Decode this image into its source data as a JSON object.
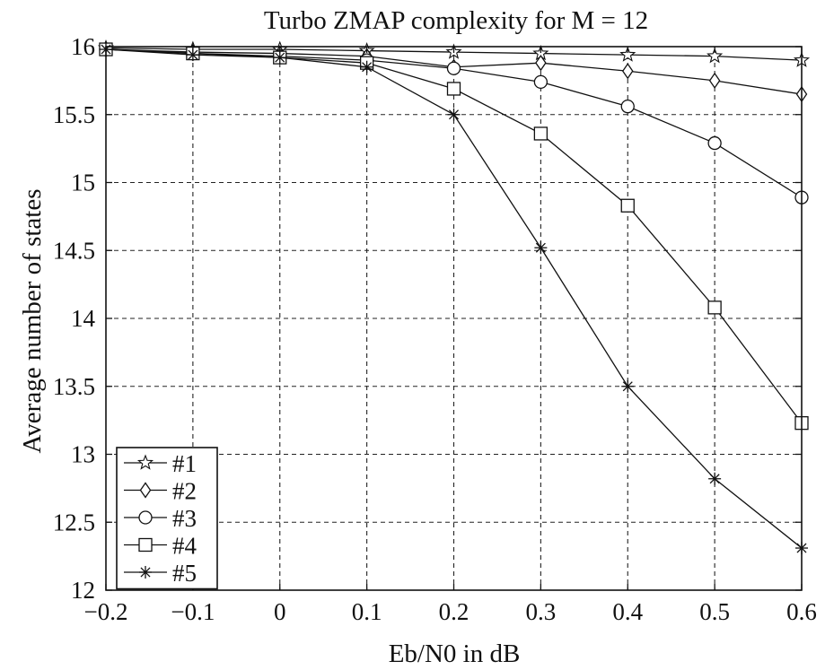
{
  "chart_data": {
    "type": "line",
    "title": "Turbo ZMAP complexity for M = 12",
    "xlabel": "Eb/N0 in dB",
    "ylabel": "Average number of states",
    "x": [
      -0.2,
      -0.1,
      0,
      0.1,
      0.2,
      0.3,
      0.4,
      0.5,
      0.6
    ],
    "xlim": [
      -0.2,
      0.6
    ],
    "ylim": [
      12,
      16
    ],
    "xticks": [
      "−0.2",
      "−0.1",
      "0",
      "0.1",
      "0.2",
      "0.3",
      "0.4",
      "0.5",
      "0.6"
    ],
    "yticks": [
      "12",
      "12.5",
      "13",
      "13.5",
      "14",
      "14.5",
      "15",
      "15.5",
      "16"
    ],
    "grid": true,
    "legend_position": "bottom-left",
    "series": [
      {
        "name": "#1",
        "marker": "star",
        "values": [
          15.99,
          15.98,
          15.98,
          15.97,
          15.96,
          15.95,
          15.94,
          15.93,
          15.9
        ]
      },
      {
        "name": "#2",
        "marker": "diamond",
        "values": [
          15.98,
          15.96,
          15.95,
          15.93,
          15.85,
          15.88,
          15.82,
          15.75,
          15.65
        ]
      },
      {
        "name": "#3",
        "marker": "circle",
        "values": [
          15.98,
          15.95,
          15.93,
          15.9,
          15.84,
          15.74,
          15.56,
          15.29,
          14.89
        ]
      },
      {
        "name": "#4",
        "marker": "square",
        "values": [
          15.98,
          15.95,
          15.92,
          15.88,
          15.69,
          15.36,
          14.83,
          14.08,
          13.23
        ]
      },
      {
        "name": "#5",
        "marker": "asterisk",
        "values": [
          15.98,
          15.94,
          15.92,
          15.85,
          15.5,
          14.52,
          13.5,
          12.82,
          12.31
        ]
      }
    ],
    "colors": {
      "line": "#111111",
      "grid": "#222222",
      "background": "#ffffff"
    }
  }
}
